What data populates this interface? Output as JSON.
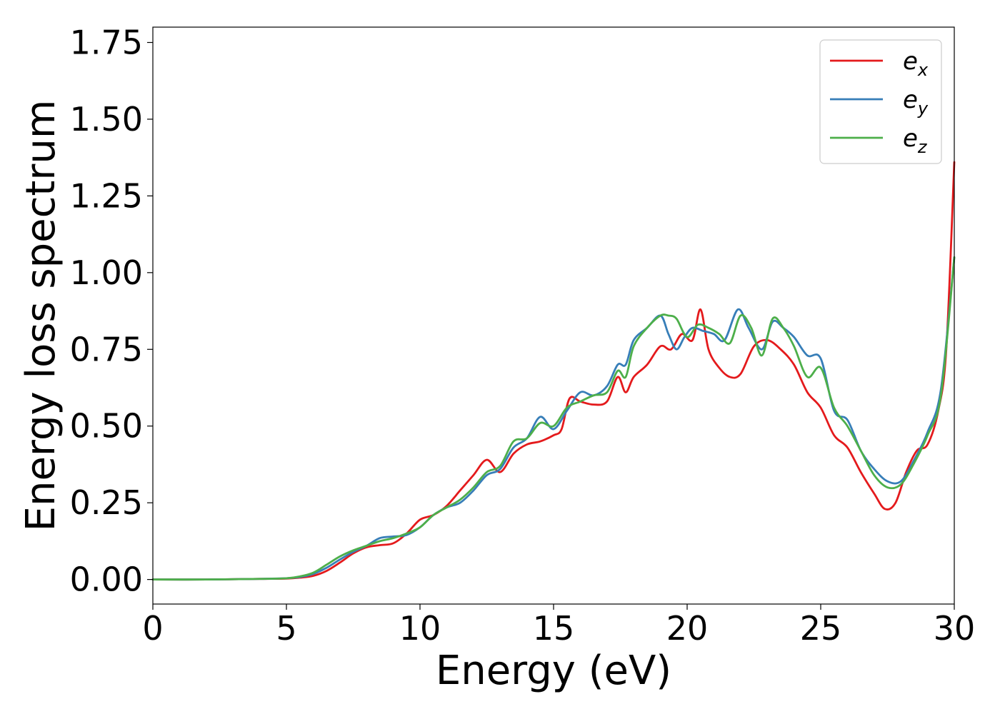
{
  "chart_data": {
    "type": "line",
    "xlabel": "Energy (eV)",
    "ylabel": "Energy loss spectrum",
    "xlim": [
      0,
      30
    ],
    "ylim": [
      -0.08,
      1.8
    ],
    "xticks": [
      0,
      5,
      10,
      15,
      20,
      25,
      30
    ],
    "xtick_labels": [
      "0",
      "5",
      "10",
      "15",
      "20",
      "25",
      "30"
    ],
    "yticks": [
      0.0,
      0.25,
      0.5,
      0.75,
      1.0,
      1.25,
      1.5,
      1.75
    ],
    "ytick_labels": [
      "0.00",
      "0.25",
      "0.50",
      "0.75",
      "1.00",
      "1.25",
      "1.50",
      "1.75"
    ],
    "grid": false,
    "legend_position": "top-right",
    "series": [
      {
        "name": "e_x",
        "legend_base": "e",
        "legend_sub": "x",
        "color": "#e41a1c",
        "x": [
          0,
          2,
          4,
          5,
          5.5,
          6,
          6.5,
          7,
          7.5,
          8,
          8.5,
          9,
          9.5,
          10,
          10.5,
          11,
          11.5,
          12,
          12.5,
          13,
          13.5,
          14,
          14.5,
          15,
          15.3,
          15.6,
          16,
          16.5,
          17,
          17.4,
          17.7,
          18,
          18.5,
          19,
          19.4,
          19.8,
          20.2,
          20.5,
          20.8,
          21.2,
          21.6,
          22,
          22.5,
          23,
          23.5,
          24,
          24.5,
          25,
          25.5,
          26,
          26.5,
          27,
          27.4,
          27.8,
          28.2,
          28.6,
          29,
          29.4,
          29.7,
          30
        ],
        "y": [
          0.0,
          0.0,
          0.002,
          0.003,
          0.006,
          0.012,
          0.028,
          0.055,
          0.085,
          0.105,
          0.112,
          0.118,
          0.15,
          0.195,
          0.21,
          0.24,
          0.29,
          0.34,
          0.39,
          0.35,
          0.41,
          0.44,
          0.45,
          0.47,
          0.49,
          0.59,
          0.58,
          0.57,
          0.58,
          0.66,
          0.61,
          0.66,
          0.7,
          0.76,
          0.75,
          0.8,
          0.78,
          0.88,
          0.75,
          0.69,
          0.66,
          0.67,
          0.76,
          0.78,
          0.75,
          0.7,
          0.61,
          0.56,
          0.47,
          0.43,
          0.35,
          0.28,
          0.23,
          0.25,
          0.35,
          0.42,
          0.44,
          0.55,
          0.75,
          1.36
        ]
      },
      {
        "name": "e_y",
        "legend_base": "e",
        "legend_sub": "y",
        "color": "#377eb8",
        "x": [
          0,
          2,
          4,
          5,
          5.5,
          6,
          6.5,
          7,
          7.5,
          8,
          8.5,
          9,
          9.5,
          10,
          10.5,
          11,
          11.5,
          12,
          12.5,
          13,
          13.5,
          14,
          14.5,
          15,
          15.5,
          16,
          16.5,
          17,
          17.4,
          17.7,
          18,
          18.5,
          19,
          19.3,
          19.6,
          19.9,
          20.2,
          20.6,
          21,
          21.4,
          21.9,
          22.3,
          22.8,
          23.2,
          23.6,
          24,
          24.5,
          25,
          25.5,
          26,
          26.5,
          27,
          27.5,
          28,
          28.5,
          29,
          29.5,
          30
        ],
        "y": [
          0.0,
          0.0,
          0.002,
          0.004,
          0.008,
          0.018,
          0.038,
          0.065,
          0.09,
          0.11,
          0.135,
          0.14,
          0.145,
          0.17,
          0.21,
          0.235,
          0.25,
          0.29,
          0.34,
          0.36,
          0.43,
          0.46,
          0.53,
          0.49,
          0.55,
          0.61,
          0.6,
          0.63,
          0.7,
          0.7,
          0.78,
          0.82,
          0.86,
          0.8,
          0.75,
          0.79,
          0.82,
          0.81,
          0.8,
          0.78,
          0.88,
          0.82,
          0.75,
          0.84,
          0.82,
          0.79,
          0.73,
          0.72,
          0.55,
          0.52,
          0.42,
          0.36,
          0.32,
          0.32,
          0.39,
          0.48,
          0.62,
          1.05
        ]
      },
      {
        "name": "e_z",
        "legend_base": "e",
        "legend_sub": "z",
        "color": "#4daf4a",
        "x": [
          0,
          2,
          4,
          5,
          5.5,
          6,
          6.5,
          7,
          7.5,
          8,
          8.5,
          9,
          9.5,
          10,
          10.5,
          11,
          11.5,
          12,
          12.5,
          13,
          13.5,
          14,
          14.5,
          15,
          15.5,
          16,
          16.5,
          17,
          17.4,
          17.7,
          18,
          18.5,
          19,
          19.3,
          19.6,
          20,
          20.4,
          20.8,
          21.2,
          21.6,
          22,
          22.4,
          22.8,
          23.2,
          23.6,
          24,
          24.5,
          25,
          25.5,
          26,
          26.5,
          27,
          27.5,
          28,
          28.5,
          29,
          29.5,
          30
        ],
        "y": [
          0.0,
          0.0,
          0.002,
          0.004,
          0.01,
          0.022,
          0.048,
          0.075,
          0.095,
          0.11,
          0.125,
          0.135,
          0.15,
          0.17,
          0.21,
          0.235,
          0.26,
          0.3,
          0.35,
          0.37,
          0.45,
          0.46,
          0.51,
          0.5,
          0.56,
          0.58,
          0.6,
          0.61,
          0.68,
          0.66,
          0.76,
          0.82,
          0.86,
          0.86,
          0.85,
          0.79,
          0.83,
          0.82,
          0.8,
          0.77,
          0.86,
          0.82,
          0.73,
          0.85,
          0.82,
          0.76,
          0.66,
          0.69,
          0.56,
          0.5,
          0.42,
          0.34,
          0.3,
          0.31,
          0.38,
          0.47,
          0.6,
          1.05
        ]
      }
    ]
  }
}
